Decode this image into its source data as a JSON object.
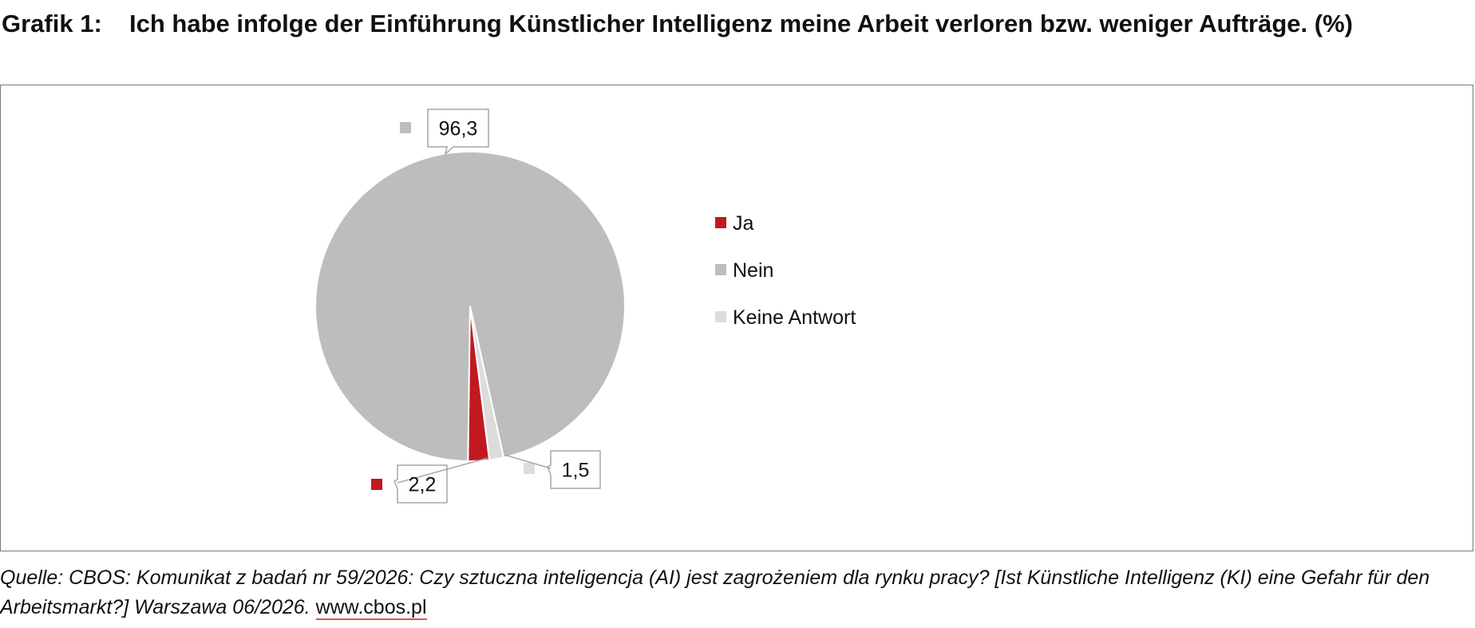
{
  "title": {
    "number": "Grafik 1:",
    "text": "Ich habe infolge der Einführung Künstlicher Intelligenz meine Arbeit verloren bzw. weniger Aufträge. (%)"
  },
  "chart_data": {
    "type": "pie",
    "categories": [
      "Ja",
      "Nein",
      "Keine Antwort"
    ],
    "values": [
      2.2,
      96.3,
      1.5
    ],
    "value_labels": [
      "2,2",
      "96,3",
      "1,5"
    ],
    "colors": [
      "#c1191f",
      "#bdbdbd",
      "#dcdcdc"
    ],
    "legend_placement": "right"
  },
  "source": {
    "text": "Quelle: CBOS: Komunikat z badań nr 59/2026: Czy sztuczna inteligencja (AI) jest zagrożeniem dla rynku pracy? [Ist Künstliche Intelligenz (KI) eine Gefahr für den Arbeitsmarkt?] Warszawa 06/2026.",
    "link": "www.cbos.pl"
  }
}
